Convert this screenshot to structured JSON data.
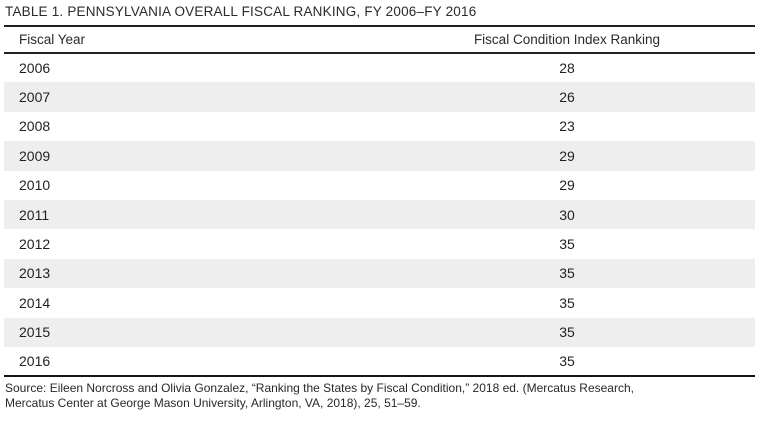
{
  "title": "TABLE 1. PENNSYLVANIA OVERALL FISCAL RANKING, FY 2006–FY 2016",
  "table": {
    "columns": [
      "Fiscal Year",
      "Fiscal Condition Index Ranking"
    ],
    "rows": [
      {
        "year": "2006",
        "ranking": "28"
      },
      {
        "year": "2007",
        "ranking": "26"
      },
      {
        "year": "2008",
        "ranking": "23"
      },
      {
        "year": "2009",
        "ranking": "29"
      },
      {
        "year": "2010",
        "ranking": "29"
      },
      {
        "year": "2011",
        "ranking": "30"
      },
      {
        "year": "2012",
        "ranking": "35"
      },
      {
        "year": "2013",
        "ranking": "35"
      },
      {
        "year": "2014",
        "ranking": "35"
      },
      {
        "year": "2015",
        "ranking": "35"
      },
      {
        "year": "2016",
        "ranking": "35"
      }
    ]
  },
  "source_lines": [
    "Source: Eileen Norcross and Olivia Gonzalez, “Ranking the States by Fiscal Condition,” 2018 ed. (Mercatus Research,",
    "Mercatus Center at George Mason University, Arlington, VA, 2018), 25, 51–59."
  ],
  "chart_data": {
    "type": "table",
    "title": "TABLE 1. PENNSYLVANIA OVERALL FISCAL RANKING, FY 2006–FY 2016",
    "columns": [
      "Fiscal Year",
      "Fiscal Condition Index Ranking"
    ],
    "categories": [
      "2006",
      "2007",
      "2008",
      "2009",
      "2010",
      "2011",
      "2012",
      "2013",
      "2014",
      "2015",
      "2016"
    ],
    "values": [
      28,
      26,
      23,
      29,
      29,
      30,
      35,
      35,
      35,
      35,
      35
    ],
    "source": "Source: Eileen Norcross and Olivia Gonzalez, “Ranking the States by Fiscal Condition,” 2018 ed. (Mercatus Research, Mercatus Center at George Mason University, Arlington, VA, 2018), 25, 51–59."
  },
  "colors": {
    "background": "#ffffff",
    "row_alt_background": "#efeeee",
    "rule": "#232021",
    "text": "#231f20"
  }
}
